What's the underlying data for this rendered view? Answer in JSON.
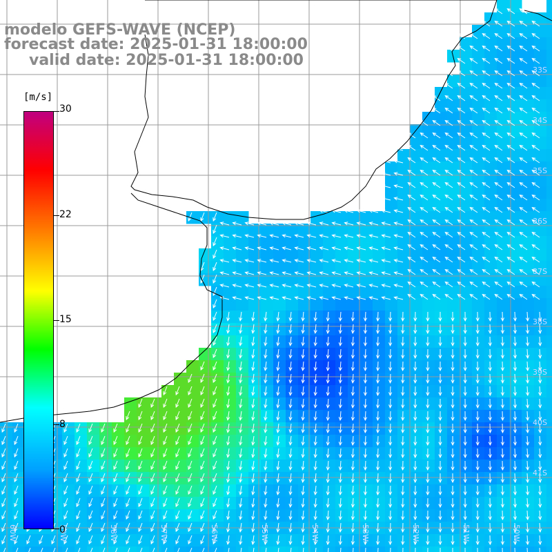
{
  "title": {
    "model": "modelo GEFS-WAVE (NCEP)",
    "forecast": "forecast date: 2025-01-31 18:00:00",
    "valid": "valid date: 2025-01-31 18:00:00"
  },
  "colorbar": {
    "unit": "[m/s]",
    "ticks": [
      "30",
      "22",
      "15",
      "8",
      "0"
    ],
    "min": 0,
    "max": 30,
    "colors": [
      "#0000ff",
      "#00a0ff",
      "#00ffff",
      "#00ff00",
      "#ffff00",
      "#ff8000",
      "#ff0000",
      "#c00080"
    ]
  },
  "map": {
    "longitude_labels": [
      "60W",
      "59W",
      "58W",
      "57W",
      "56W",
      "55W",
      "54W",
      "53W",
      "52W",
      "51W",
      "50W",
      "49W"
    ],
    "latitude_labels": [
      "33S",
      "34S",
      "35S",
      "36S",
      "37S",
      "38S",
      "39S",
      "40S",
      "41S"
    ],
    "land_color": "#ffffff",
    "grid_color": "#9a9a9a",
    "arrow_color": "#ffffff",
    "coast_color": "#000000"
  }
}
